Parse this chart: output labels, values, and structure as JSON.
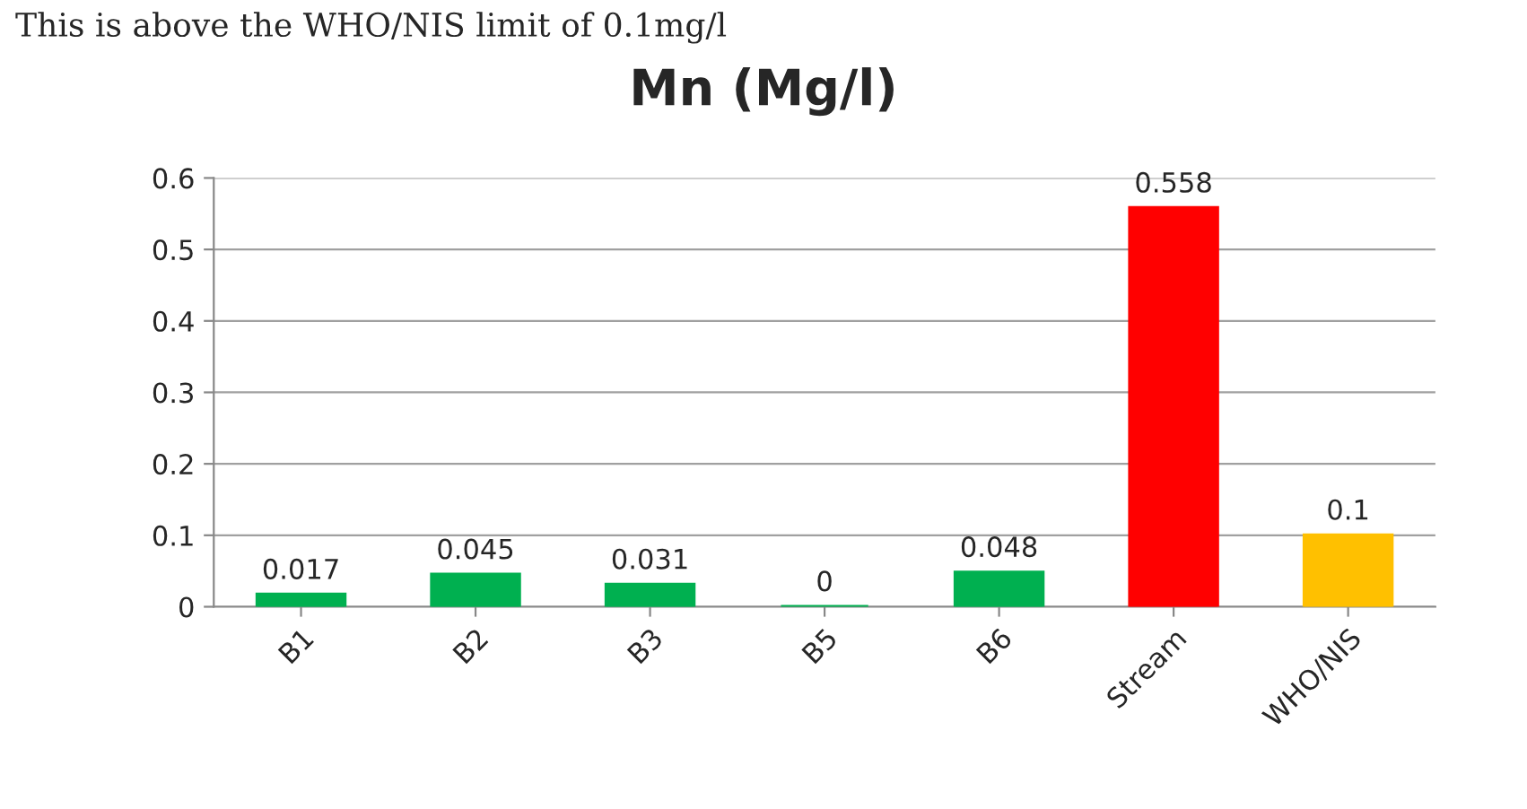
{
  "chart_data": {
    "type": "bar",
    "title": "Mn (Mg/l)",
    "categories": [
      "B1",
      "B2",
      "B3",
      "B5",
      "B6",
      "Stream",
      "WHO/NIS"
    ],
    "values": [
      0.017,
      0.045,
      0.031,
      0,
      0.048,
      0.558,
      0.1
    ],
    "colors": [
      "#00b050",
      "#00b050",
      "#00b050",
      "#00b050",
      "#00b050",
      "#ff0000",
      "#ffc000"
    ],
    "ylim": [
      0,
      0.6
    ],
    "yticks": [
      0,
      {
        "value": 0.1,
        "label": "0.1"
      },
      {
        "value": 0.2,
        "label": "0.2"
      },
      {
        "value": 0.3,
        "label": "0.3"
      },
      {
        "value": 0.4,
        "label": "0.4"
      },
      {
        "value": 0.5,
        "label": "0.5"
      },
      {
        "value": 0.6,
        "label": "0.6"
      }
    ],
    "grid": "y",
    "data_labels": true,
    "legend": false,
    "annotations": [
      "This is above the WHO/NIS limit of 0.1mg/l"
    ]
  }
}
